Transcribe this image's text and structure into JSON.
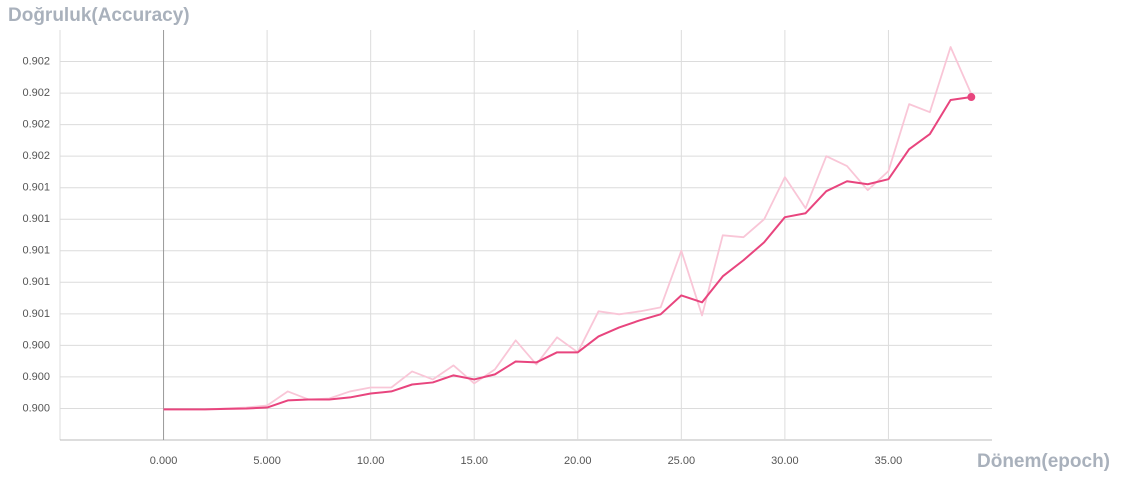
{
  "chart_data": {
    "type": "line",
    "title": "Doğruluk(Accuracy)",
    "x_label": "Dönem(epoch)",
    "x": [
      0,
      1,
      2,
      3,
      4,
      5,
      6,
      7,
      8,
      9,
      10,
      11,
      12,
      13,
      14,
      15,
      16,
      17,
      18,
      19,
      20,
      21,
      22,
      23,
      24,
      25,
      26,
      27,
      28,
      29,
      30,
      31,
      32,
      33,
      34,
      35,
      36,
      37,
      38,
      39
    ],
    "series": [
      {
        "color": "#f9c6d7",
        "values": [
          0.899994,
          0.899994,
          0.899994,
          0.9,
          0.900006,
          0.900019,
          0.900108,
          0.900057,
          0.900063,
          0.900108,
          0.900133,
          0.900133,
          0.900235,
          0.900184,
          0.900273,
          0.900159,
          0.900248,
          0.900432,
          0.900279,
          0.900451,
          0.900356,
          0.900616,
          0.900597,
          0.900616,
          0.900641,
          0.901,
          0.90059,
          0.901098,
          0.901086,
          0.9012,
          0.901467,
          0.90127,
          0.9016,
          0.901537,
          0.901384,
          0.901505,
          0.90193,
          0.901879,
          0.902292,
          0.901994
        ]
      },
      {
        "color": "#e8457e",
        "values": [
          0.899994,
          0.899994,
          0.899994,
          0.899997,
          0.9,
          0.900006,
          0.900051,
          0.900057,
          0.900057,
          0.90007,
          0.900095,
          0.900108,
          0.900152,
          0.900165,
          0.90021,
          0.900184,
          0.900216,
          0.900298,
          0.900292,
          0.900356,
          0.900356,
          0.900457,
          0.900514,
          0.900559,
          0.900597,
          0.900717,
          0.900673,
          0.900838,
          0.90094,
          0.901054,
          0.901213,
          0.901238,
          0.901378,
          0.901441,
          0.901422,
          0.901454,
          0.901644,
          0.90174,
          0.901956,
          0.901975
        ]
      }
    ],
    "xlim": [
      -5,
      40
    ],
    "xticks": [
      {
        "value": 0,
        "label": "0.000"
      },
      {
        "value": 5,
        "label": "5.000"
      },
      {
        "value": 10,
        "label": "10.00"
      },
      {
        "value": 15,
        "label": "15.00"
      },
      {
        "value": 20,
        "label": "20.00"
      },
      {
        "value": 25,
        "label": "25.00"
      },
      {
        "value": 30,
        "label": "30.00"
      },
      {
        "value": 35,
        "label": "35.00"
      }
    ],
    "ylim": [
      0.8998,
      0.9024
    ],
    "yticks": [
      {
        "value": 0.9,
        "label": "0.900"
      },
      {
        "value": 0.9002,
        "label": "0.900"
      },
      {
        "value": 0.9004,
        "label": "0.900"
      },
      {
        "value": 0.9006,
        "label": "0.901"
      },
      {
        "value": 0.9008,
        "label": "0.901"
      },
      {
        "value": 0.901,
        "label": "0.901"
      },
      {
        "value": 0.9012,
        "label": "0.901"
      },
      {
        "value": 0.9014,
        "label": "0.901"
      },
      {
        "value": 0.9016,
        "label": "0.902"
      },
      {
        "value": 0.9018,
        "label": "0.902"
      },
      {
        "value": 0.902,
        "label": "0.902"
      },
      {
        "value": 0.9022,
        "label": "0.902"
      }
    ],
    "grid": true
  }
}
